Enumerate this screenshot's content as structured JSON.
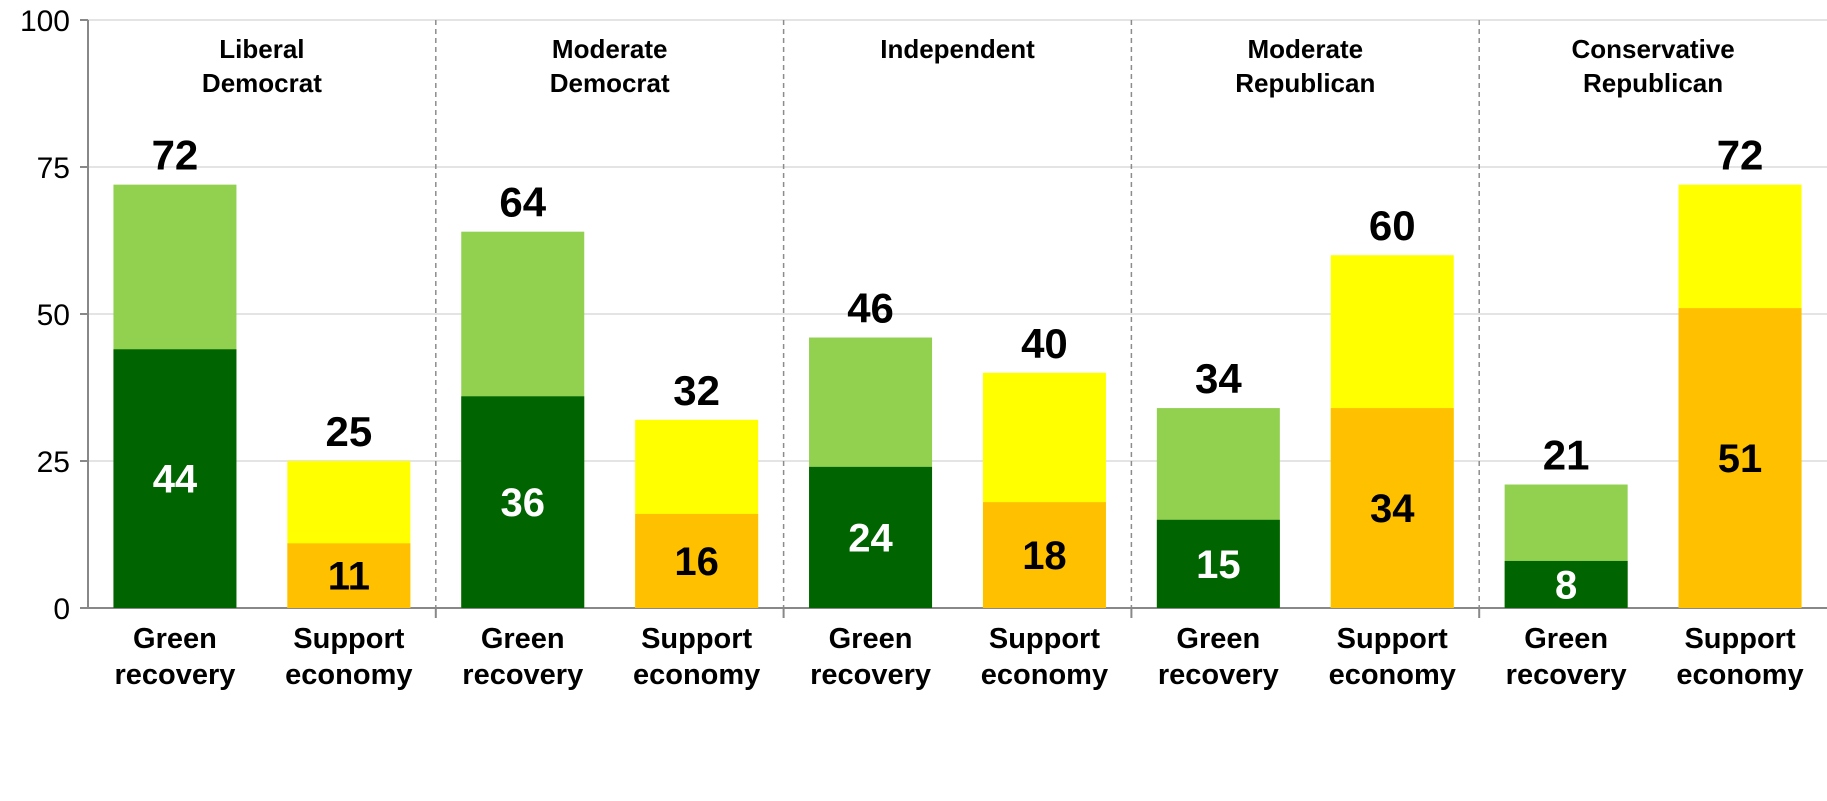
{
  "chart_data": {
    "type": "bar",
    "stacked": true,
    "ylim": [
      0,
      100
    ],
    "yticks": [
      0,
      25,
      50,
      75,
      100
    ],
    "grid": true,
    "colors": {
      "green_strong": "#006400",
      "green_total": "#92D050",
      "support_strong": "#FFC000",
      "support_total": "#FFFF00"
    },
    "groups": [
      {
        "name": [
          "Liberal",
          "Democrat"
        ],
        "bars": [
          {
            "label": [
              "Green",
              "recovery"
            ],
            "kind": "green",
            "total": 72,
            "inner": 44
          },
          {
            "label": [
              "Support",
              "economy"
            ],
            "kind": "support",
            "total": 25,
            "inner": 11
          }
        ]
      },
      {
        "name": [
          "Moderate",
          "Democrat"
        ],
        "bars": [
          {
            "label": [
              "Green",
              "recovery"
            ],
            "kind": "green",
            "total": 64,
            "inner": 36
          },
          {
            "label": [
              "Support",
              "economy"
            ],
            "kind": "support",
            "total": 32,
            "inner": 16
          }
        ]
      },
      {
        "name": [
          "Independent"
        ],
        "bars": [
          {
            "label": [
              "Green",
              "recovery"
            ],
            "kind": "green",
            "total": 46,
            "inner": 24
          },
          {
            "label": [
              "Support",
              "economy"
            ],
            "kind": "support",
            "total": 40,
            "inner": 18
          }
        ]
      },
      {
        "name": [
          "Moderate",
          "Republican"
        ],
        "bars": [
          {
            "label": [
              "Green",
              "recovery"
            ],
            "kind": "green",
            "total": 34,
            "inner": 15
          },
          {
            "label": [
              "Support",
              "economy"
            ],
            "kind": "support",
            "total": 60,
            "inner": 34
          }
        ]
      },
      {
        "name": [
          "Conservative",
          "Republican"
        ],
        "bars": [
          {
            "label": [
              "Green",
              "recovery"
            ],
            "kind": "green",
            "total": 21,
            "inner": 8
          },
          {
            "label": [
              "Support",
              "economy"
            ],
            "kind": "support",
            "total": 72,
            "inner": 51
          }
        ]
      }
    ]
  }
}
